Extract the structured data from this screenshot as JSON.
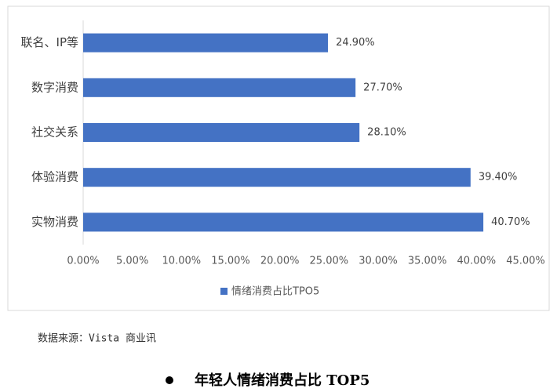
{
  "chart_data": {
    "type": "hbar",
    "categories": [
      "联名、IP等",
      "数字消费",
      "社交关系",
      "体验消费",
      "实物消费"
    ],
    "series": [
      {
        "name": "情绪消费占比TPO5",
        "color": "#4472c4",
        "values": [
          24.9,
          27.7,
          28.1,
          39.4,
          40.7
        ],
        "value_labels": [
          "24.90%",
          "27.70%",
          "28.10%",
          "39.40%",
          "40.70%"
        ]
      }
    ],
    "xlim": [
      0,
      45
    ],
    "xticks": [
      {
        "value": 0,
        "label": "0.00%"
      },
      {
        "value": 5,
        "label": "5.00%"
      },
      {
        "value": 10,
        "label": "10.00%"
      },
      {
        "value": 15,
        "label": "15.00%"
      },
      {
        "value": 20,
        "label": "20.00%"
      },
      {
        "value": 25,
        "label": "25.00%"
      },
      {
        "value": 30,
        "label": "30.00%"
      },
      {
        "value": 35,
        "label": "35.00%"
      },
      {
        "value": 40,
        "label": "40.00%"
      },
      {
        "value": 45,
        "label": "45.00%"
      }
    ],
    "grid": false,
    "legend": "bottom"
  },
  "notes": {
    "source": "数据来源：Vista 商业讯",
    "caption": "年轻人情绪消费占比 TOP5"
  }
}
